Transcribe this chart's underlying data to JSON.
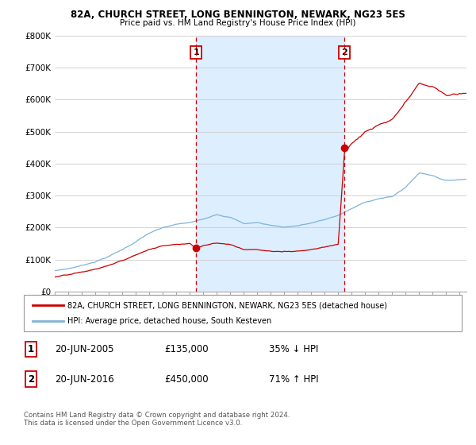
{
  "title1": "82A, CHURCH STREET, LONG BENNINGTON, NEWARK, NG23 5ES",
  "title2": "Price paid vs. HM Land Registry's House Price Index (HPI)",
  "xlim_start": 1995.0,
  "xlim_end": 2025.5,
  "ylim": [
    0,
    800000
  ],
  "yticks": [
    0,
    100000,
    200000,
    300000,
    400000,
    500000,
    600000,
    700000,
    800000
  ],
  "ytick_labels": [
    "£0",
    "£100K",
    "£200K",
    "£300K",
    "£400K",
    "£500K",
    "£600K",
    "£700K",
    "£800K"
  ],
  "sale1_x": 2005.47,
  "sale1_y": 135000,
  "sale1_label": "20-JUN-2005",
  "sale1_price": "£135,000",
  "sale1_hpi": "35% ↓ HPI",
  "sale2_x": 2016.47,
  "sale2_y": 450000,
  "sale2_label": "20-JUN-2016",
  "sale2_price": "£450,000",
  "sale2_hpi": "71% ↑ HPI",
  "red_color": "#cc0000",
  "blue_color": "#7fb3d9",
  "shade_color": "#ddeeff",
  "vline_color": "#cc0000",
  "background_color": "#ffffff",
  "grid_color": "#cccccc",
  "legend_label_red": "82A, CHURCH STREET, LONG BENNINGTON, NEWARK, NG23 5ES (detached house)",
  "legend_label_blue": "HPI: Average price, detached house, South Kesteven",
  "footer": "Contains HM Land Registry data © Crown copyright and database right 2024.\nThis data is licensed under the Open Government Licence v3.0."
}
